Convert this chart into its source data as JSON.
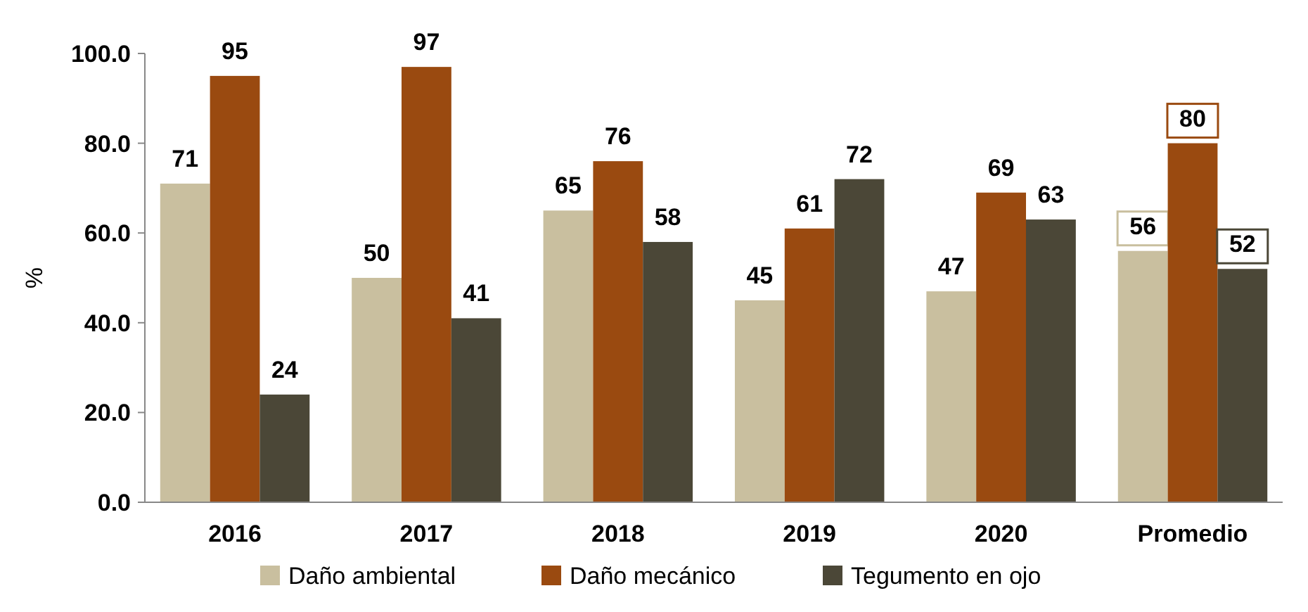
{
  "chart_data": {
    "type": "bar",
    "ylabel": "%",
    "categories": [
      "2016",
      "2017",
      "2018",
      "2019",
      "2020",
      "Promedio"
    ],
    "series": [
      {
        "name": "Daño ambiental",
        "color": "#c9bf9f",
        "values": [
          71,
          50,
          65,
          45,
          47,
          56
        ]
      },
      {
        "name": "Daño mecánico",
        "color": "#9a4a10",
        "values": [
          95,
          97,
          76,
          61,
          69,
          80
        ]
      },
      {
        "name": "Tegumento en ojo",
        "color": "#4b4737",
        "values": [
          24,
          41,
          58,
          72,
          63,
          52
        ]
      }
    ],
    "ylim": [
      0,
      100
    ],
    "yticks": [
      {
        "value": 0,
        "label": "0.0"
      },
      {
        "value": 20,
        "label": "20.0"
      },
      {
        "value": 40,
        "label": "40.0"
      },
      {
        "value": 60,
        "label": "60.0"
      },
      {
        "value": 80,
        "label": "80.0"
      },
      {
        "value": 100,
        "label": "100.0"
      }
    ],
    "data_labels": true,
    "grid": false,
    "legend": "bottom"
  }
}
